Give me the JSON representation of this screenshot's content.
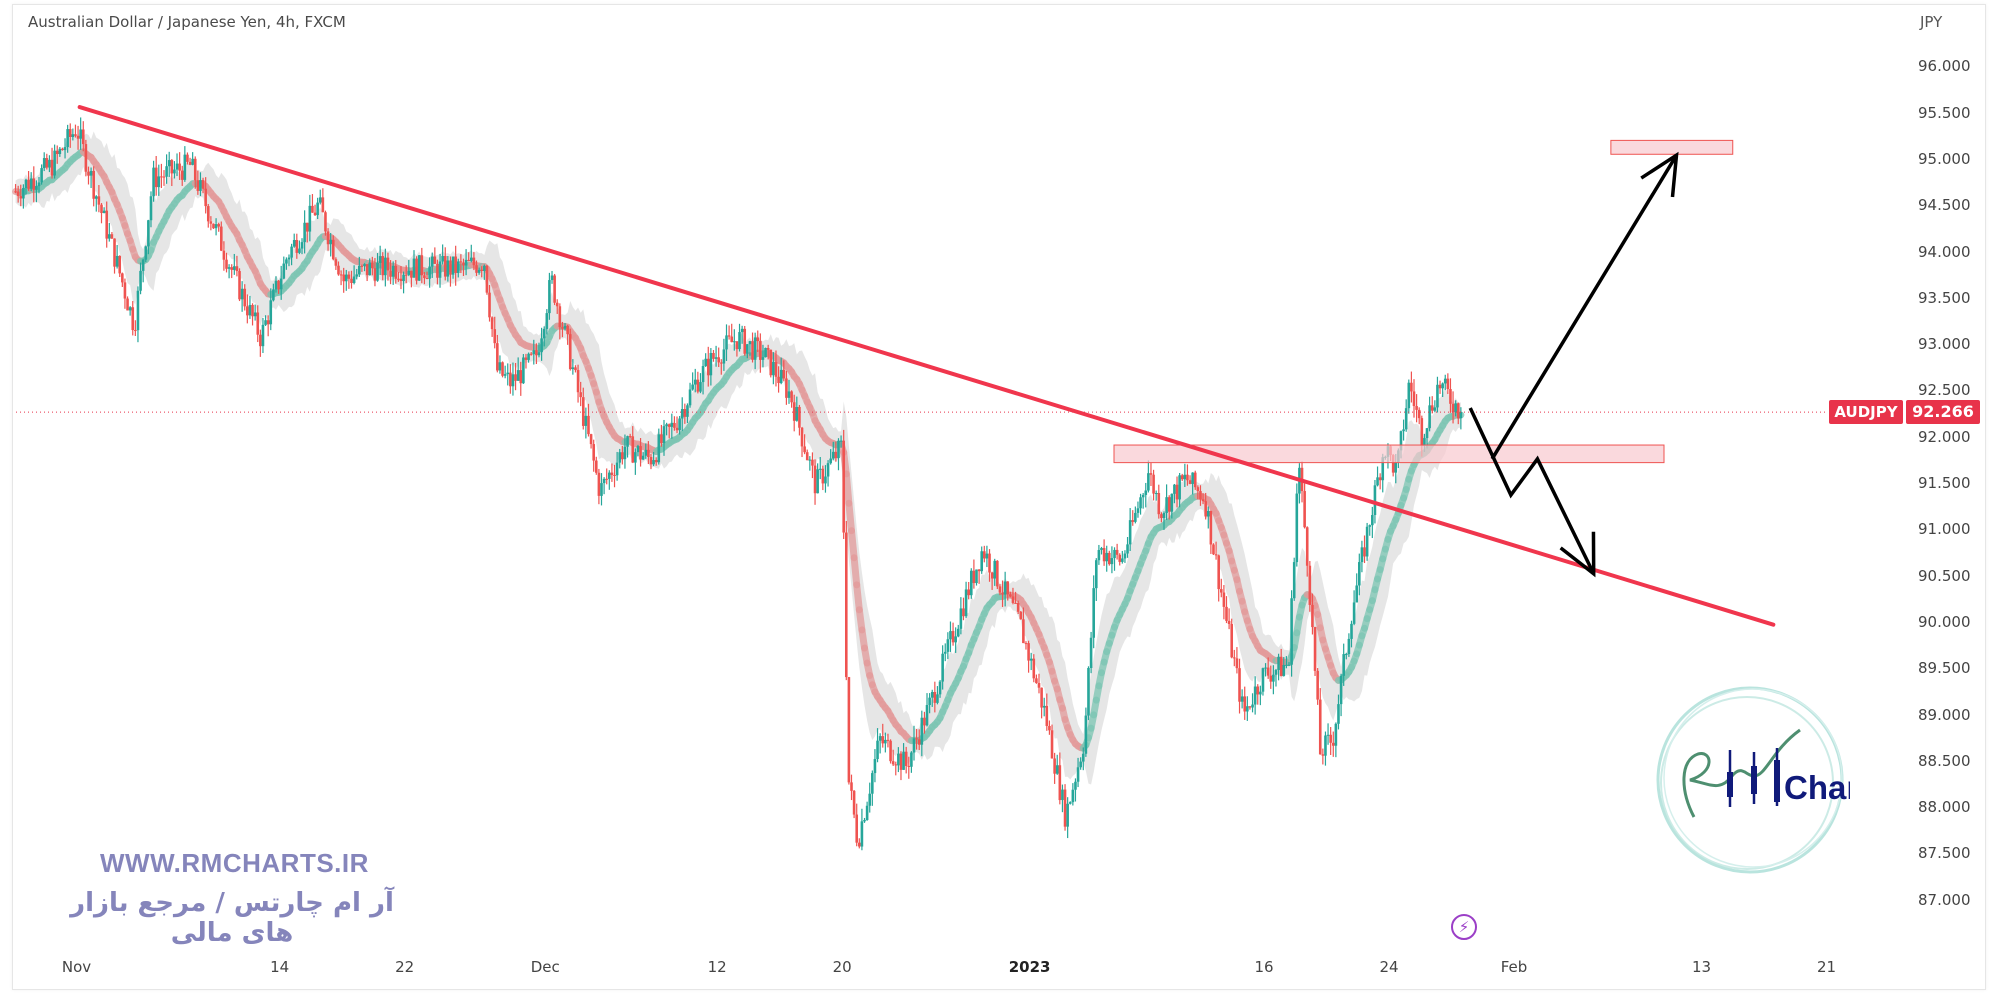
{
  "header": {
    "title": "Australian Dollar / Japanese Yen, 4h, FXCM",
    "currency": "JPY"
  },
  "price_axis": [
    "96.000",
    "95.500",
    "95.000",
    "94.500",
    "94.000",
    "93.500",
    "93.000",
    "92.500",
    "92.000",
    "91.500",
    "91.000",
    "90.500",
    "90.000",
    "89.500",
    "89.000",
    "88.500",
    "88.000",
    "87.500",
    "87.000"
  ],
  "date_axis": [
    {
      "label": "Nov",
      "day": 0
    },
    {
      "label": "14",
      "day": 13
    },
    {
      "label": "22",
      "day": 21
    },
    {
      "label": "Dec",
      "day": 30
    },
    {
      "label": "12",
      "day": 41
    },
    {
      "label": "20",
      "day": 49
    },
    {
      "label": "2023",
      "day": 61,
      "bold": true
    },
    {
      "label": "16",
      "day": 76
    },
    {
      "label": "24",
      "day": 84
    },
    {
      "label": "Feb",
      "day": 92
    },
    {
      "label": "13",
      "day": 104
    },
    {
      "label": "21",
      "day": 112
    }
  ],
  "symbol_badge": {
    "symbol": "AUDJPY",
    "last_price": "92.266"
  },
  "watermark": {
    "site": "WWW.RMCHARTS.IR",
    "tagline": "آر ام چارتس / مرجع بازار های مالی",
    "logo_text": "Charts",
    "logo_letters": "RM"
  },
  "colors": {
    "up": "#26a69a",
    "down": "#ef5350",
    "trend": "#f0364d",
    "zone": "#f8c9cf",
    "arrow": "#000000",
    "accent": "#e8334a"
  },
  "chart_data": {
    "type": "candlestick",
    "title": "Australian Dollar / Japanese Yen, 4h, FXCM",
    "x_unit": "days since Nov 1",
    "ylim": [
      86.6,
      96.6
    ],
    "last_price": 92.266,
    "keypoints": [
      [
        -3.9,
        94.65
      ],
      [
        -1.6,
        94.93
      ],
      [
        0,
        95.34
      ],
      [
        1.2,
        94.65
      ],
      [
        2.9,
        93.69
      ],
      [
        3.7,
        93.2
      ],
      [
        4.9,
        94.79
      ],
      [
        7.3,
        94.93
      ],
      [
        8.6,
        94.37
      ],
      [
        10.2,
        93.69
      ],
      [
        11.8,
        93.07
      ],
      [
        13.5,
        93.96
      ],
      [
        15.5,
        94.51
      ],
      [
        17.1,
        93.69
      ],
      [
        18.8,
        93.82
      ],
      [
        21.2,
        93.82
      ],
      [
        24.5,
        93.82
      ],
      [
        26.1,
        93.89
      ],
      [
        26.9,
        92.72
      ],
      [
        27.8,
        92.58
      ],
      [
        29.4,
        92.86
      ],
      [
        30.4,
        93.69
      ],
      [
        31.4,
        93.0
      ],
      [
        32.7,
        92.03
      ],
      [
        33.5,
        91.41
      ],
      [
        35.1,
        91.9
      ],
      [
        36.7,
        91.76
      ],
      [
        38.4,
        92.17
      ],
      [
        39.6,
        92.58
      ],
      [
        40.8,
        92.86
      ],
      [
        42.3,
        93.07
      ],
      [
        44.1,
        92.86
      ],
      [
        45.7,
        92.45
      ],
      [
        47.3,
        91.48
      ],
      [
        49.0,
        91.9
      ],
      [
        49.4,
        88.31
      ],
      [
        50.0,
        87.63
      ],
      [
        51.4,
        88.73
      ],
      [
        53.1,
        88.45
      ],
      [
        54.7,
        89.14
      ],
      [
        56.3,
        89.97
      ],
      [
        58.0,
        90.79
      ],
      [
        59.2,
        90.38
      ],
      [
        60.4,
        89.97
      ],
      [
        62.0,
        89.0
      ],
      [
        63.3,
        87.9
      ],
      [
        64.5,
        88.73
      ],
      [
        65.3,
        90.79
      ],
      [
        66.9,
        90.66
      ],
      [
        68.6,
        91.62
      ],
      [
        69.4,
        91.21
      ],
      [
        71.0,
        91.55
      ],
      [
        72.2,
        91.34
      ],
      [
        73.5,
        90.1
      ],
      [
        74.7,
        89.0
      ],
      [
        75.9,
        89.42
      ],
      [
        77.6,
        89.55
      ],
      [
        78.2,
        91.76
      ],
      [
        78.8,
        90.66
      ],
      [
        79.6,
        88.59
      ],
      [
        80.4,
        88.73
      ],
      [
        81.6,
        90.1
      ],
      [
        82.9,
        91.21
      ],
      [
        83.7,
        91.9
      ],
      [
        84.5,
        91.62
      ],
      [
        85.3,
        92.58
      ],
      [
        86.1,
        92.03
      ],
      [
        87.2,
        92.58
      ],
      [
        88.6,
        92.266
      ]
    ],
    "drawings": {
      "trendline": [
        [
          0.2,
          95.56
        ],
        [
          108.6,
          89.97
        ]
      ],
      "support_zone": {
        "day_from": 66.4,
        "day_to": 101.6,
        "price_top": 91.91,
        "price_bottom": 91.72
      },
      "target_zone": {
        "day_from": 98.2,
        "day_to": 106.0,
        "price_top": 95.2,
        "price_bottom": 95.05
      },
      "bearish_path": [
        [
          89.2,
          92.31
        ],
        [
          91.8,
          91.37
        ],
        [
          93.5,
          91.76
        ],
        [
          97.1,
          90.52
        ]
      ],
      "bullish_path": [
        [
          90.6,
          91.76
        ],
        [
          102.4,
          95.04
        ]
      ]
    }
  }
}
